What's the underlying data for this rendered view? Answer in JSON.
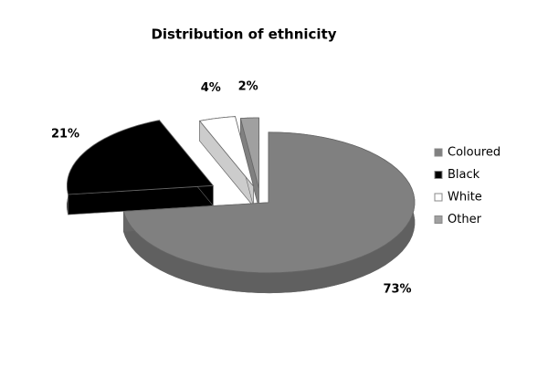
{
  "chart_data": {
    "type": "pie",
    "title": "Distribution of ethnicity",
    "categories": [
      "Coloured",
      "Black",
      "White",
      "Other"
    ],
    "values": [
      73,
      21,
      4,
      2
    ],
    "value_labels": [
      "73%",
      "21%",
      "4%",
      "2%"
    ],
    "colors": [
      "#808080",
      "#000000",
      "#ffffff",
      "#a0a0a0"
    ],
    "legend": "right"
  }
}
